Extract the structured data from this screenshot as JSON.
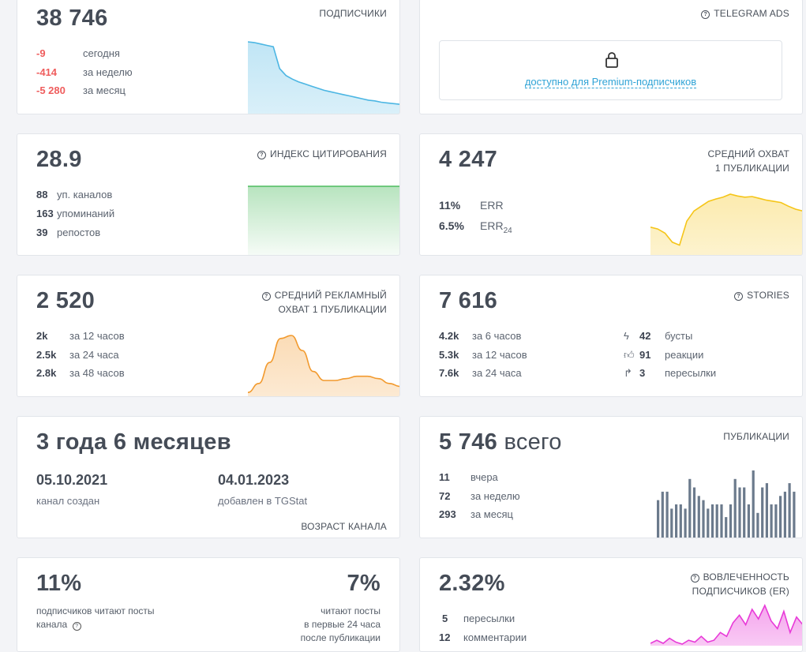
{
  "subscribers": {
    "value": "38 746",
    "label": "ПОДПИСЧИКИ",
    "rows": [
      {
        "v": "-9",
        "t": "сегодня"
      },
      {
        "v": "-414",
        "t": "за неделю"
      },
      {
        "v": "-5 280",
        "t": "за месяц"
      }
    ]
  },
  "ads": {
    "label": "TELEGRAM ADS",
    "premium_link": "доступно для Premium-подписчиков"
  },
  "citation": {
    "value": "28.9",
    "label": "ИНДЕКС ЦИТИРОВАНИЯ",
    "rows": [
      {
        "v": "88",
        "t": "уп. каналов"
      },
      {
        "v": "163",
        "t": "упоминаний"
      },
      {
        "v": "39",
        "t": "репостов"
      }
    ]
  },
  "reach": {
    "value": "4 247",
    "label1": "СРЕДНИЙ ОХВАТ",
    "label2": "1 ПУБЛИКАЦИИ",
    "err_v": "11%",
    "err_t": "ERR",
    "err24_v": "6.5%",
    "err24_t": "ERR",
    "err24_sub": "24"
  },
  "ad_reach": {
    "value": "2 520",
    "label1": "СРЕДНИЙ РЕКЛАМНЫЙ",
    "label2": "ОХВАТ 1 ПУБЛИКАЦИИ",
    "rows": [
      {
        "v": "2k",
        "t": "за 12 часов"
      },
      {
        "v": "2.5k",
        "t": "за 24 часа"
      },
      {
        "v": "2.8k",
        "t": "за 48 часов"
      }
    ]
  },
  "stories": {
    "value": "7 616",
    "label": "STORIES",
    "rows": [
      {
        "v": "4.2k",
        "t": "за 6 часов"
      },
      {
        "v": "5.3k",
        "t": "за 12 часов"
      },
      {
        "v": "7.6k",
        "t": "за 24 часа"
      }
    ],
    "stats": [
      {
        "icon": "bolt-icon",
        "v": "42",
        "t": "бусты"
      },
      {
        "icon": "thumbs-up-icon",
        "v": "91",
        "t": "реакции"
      },
      {
        "icon": "share-arrow-icon",
        "v": "3",
        "t": "пересылки"
      }
    ]
  },
  "age": {
    "value": "3 года 6 месяцев",
    "created_date": "05.10.2021",
    "created_label": "канал создан",
    "added_date": "04.01.2023",
    "added_label": "добавлен в TGStat",
    "label": "ВОЗРАСТ КАНАЛА"
  },
  "posts": {
    "value": "5 746",
    "value_suffix": "всего",
    "label": "ПУБЛИКАЦИИ",
    "rows": [
      {
        "v": "11",
        "t": "вчера"
      },
      {
        "v": "72",
        "t": "за неделю"
      },
      {
        "v": "293",
        "t": "за месяц"
      }
    ]
  },
  "readers": {
    "value": "11%",
    "label1": "подписчиков читают посты",
    "label2": "канала",
    "value2": "7%",
    "r1": "читают посты",
    "r2": "в первые 24 часа",
    "r3": "после публикации"
  },
  "er": {
    "value": "2.32%",
    "label1": "ВОВЛЕЧЕННОСТЬ",
    "label2": "ПОДПИСЧИКОВ (ER)",
    "rows": [
      {
        "v": "5",
        "t": "пересылки"
      },
      {
        "v": "12",
        "t": "комментарии"
      }
    ]
  },
  "colors": {
    "blue": "#4cb6e3",
    "green": "#4dbb5f",
    "yellow": "#f5c518",
    "orange": "#f29a2e",
    "bars": "#6b7a8c",
    "pink": "#e83ad8",
    "red": "#ef5d5d"
  },
  "chart_data": [
    {
      "type": "area",
      "title": "ПОДПИСЧИКИ",
      "values": [
        1.0,
        0.99,
        0.97,
        0.95,
        0.93,
        0.62,
        0.52,
        0.47,
        0.43,
        0.4,
        0.37,
        0.34,
        0.31,
        0.29,
        0.27,
        0.25,
        0.23,
        0.21,
        0.19,
        0.17,
        0.16,
        0.14,
        0.13,
        0.12,
        0.11
      ]
    },
    {
      "type": "area",
      "title": "ИНДЕКС ЦИТИРОВАНИЯ",
      "values": [
        1,
        1,
        1,
        1,
        1,
        1,
        1,
        1,
        1,
        1
      ]
    },
    {
      "type": "area",
      "title": "СРЕДНИЙ ОХВАТ 1 ПУБЛИКАЦИИ",
      "values": [
        0.45,
        0.42,
        0.35,
        0.2,
        0.15,
        0.55,
        0.72,
        0.8,
        0.88,
        0.92,
        0.95,
        1.0,
        0.97,
        0.95,
        0.96,
        0.93,
        0.9,
        0.88,
        0.86,
        0.8,
        0.75,
        0.72
      ]
    },
    {
      "type": "area",
      "title": "СРЕДНИЙ РЕКЛАМНЫЙ ОХВАТ 1 ПУБЛИКАЦИИ",
      "values": [
        0.05,
        0.2,
        0.55,
        0.95,
        1.0,
        0.75,
        0.4,
        0.25,
        0.25,
        0.28,
        0.32,
        0.32,
        0.28,
        0.2,
        0.15
      ]
    },
    {
      "type": "bar",
      "title": "ПУБЛИКАЦИИ",
      "values": [
        9,
        11,
        11,
        7,
        8,
        8,
        7,
        14,
        12,
        10,
        9,
        7,
        8,
        8,
        8,
        5,
        8,
        14,
        12,
        12,
        8,
        16,
        6,
        12,
        13,
        8,
        8,
        10,
        11,
        13,
        11
      ]
    },
    {
      "type": "area",
      "title": "ВОВЛЕЧЕННОСТЬ ПОДПИСЧИКОВ (ER)",
      "values": [
        0.02,
        0.1,
        0.02,
        0.15,
        0.05,
        0.0,
        0.1,
        0.05,
        0.2,
        0.05,
        0.1,
        0.3,
        0.2,
        0.55,
        0.75,
        0.5,
        0.9,
        0.65,
        1.0,
        0.6,
        0.4,
        0.85,
        0.3,
        0.7,
        0.5
      ]
    }
  ]
}
